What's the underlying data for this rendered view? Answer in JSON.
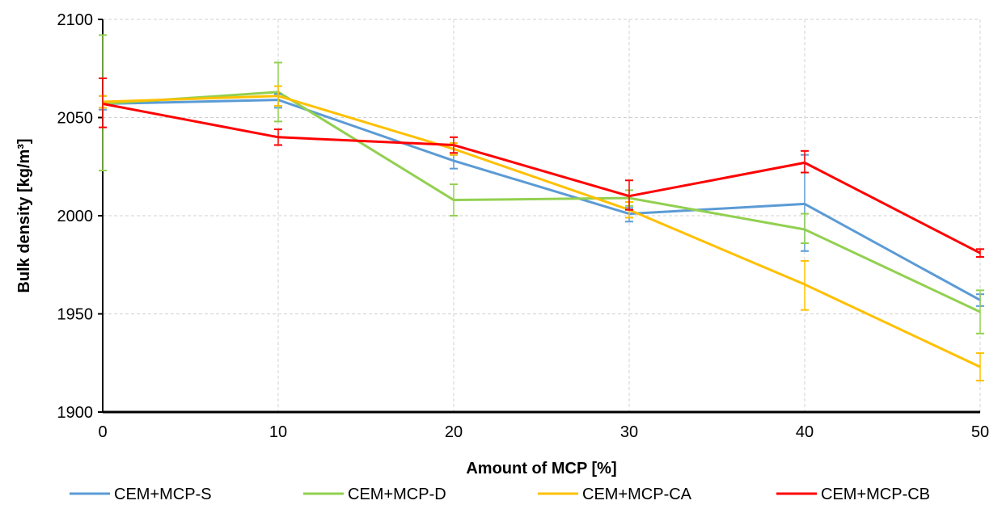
{
  "chart_data": {
    "type": "line",
    "x": [
      0,
      10,
      20,
      30,
      40,
      50
    ],
    "xlabel": "Amount of MCP [%]",
    "ylabel": "Bulk density [kg/m³]",
    "ylim": [
      1900,
      2100
    ],
    "xlim": [
      0,
      50
    ],
    "yticks": [
      1900,
      1950,
      2000,
      2050,
      2100
    ],
    "xticks": [
      0,
      10,
      20,
      30,
      40,
      50
    ],
    "grid": true,
    "legend_position": "bottom",
    "series": [
      {
        "name": "CEM+MCP-S",
        "color": "#5b9bd5",
        "values": [
          2057,
          2059,
          2028,
          2001,
          2006,
          1957
        ],
        "err_high": [
          2061,
          2062,
          2031,
          2004,
          2031,
          1960
        ],
        "err_low": [
          2054,
          2055,
          2024,
          1997,
          1982,
          1954
        ]
      },
      {
        "name": "CEM+MCP-D",
        "color": "#92d050",
        "values": [
          2057,
          2063,
          2008,
          2009,
          1993,
          1951
        ],
        "err_high": [
          2092,
          2078,
          2016,
          2013,
          2001,
          1962
        ],
        "err_low": [
          2023,
          2048,
          2000,
          2005,
          1986,
          1940
        ]
      },
      {
        "name": "CEM+MCP-CA",
        "color": "#ffc000",
        "values": [
          2058,
          2061,
          2034,
          2003,
          1965,
          1923
        ],
        "err_high": [
          2061,
          2066,
          2037,
          2007,
          1977,
          1930
        ],
        "err_low": [
          2055,
          2056,
          2031,
          1999,
          1952,
          1916
        ]
      },
      {
        "name": "CEM+MCP-CB",
        "color": "#ff0000",
        "values": [
          2057,
          2040,
          2036,
          2010,
          2027,
          1981
        ],
        "err_high": [
          2070,
          2044,
          2040,
          2018,
          2033,
          1983
        ],
        "err_low": [
          2045,
          2036,
          2032,
          2003,
          2022,
          1979
        ]
      }
    ]
  }
}
